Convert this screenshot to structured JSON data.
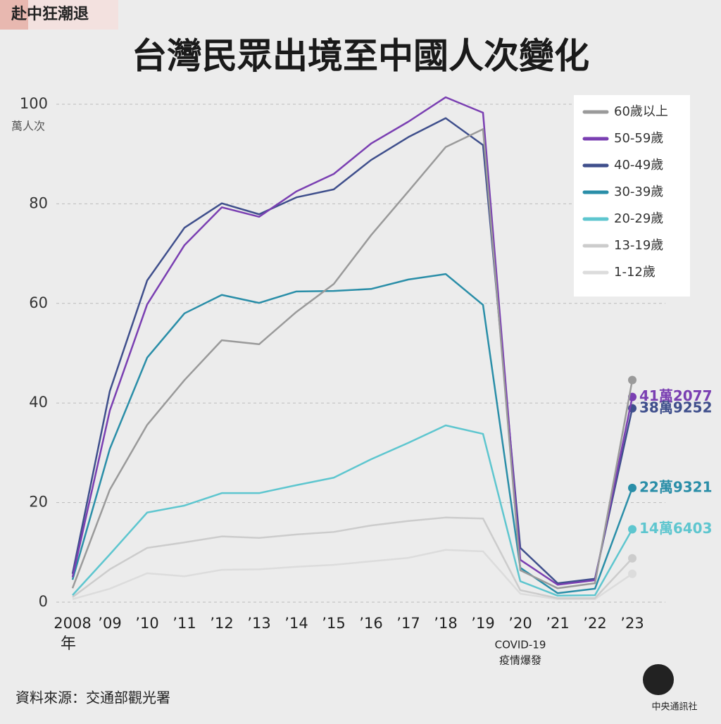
{
  "chart_data": {
    "type": "line",
    "tag": "赴中狂潮退",
    "title": "台灣民眾出境至中國人次變化",
    "ylabel": "萬人次",
    "xlabel": "年",
    "source": "資料來源：交通部觀光署",
    "logo": "中央通訊社",
    "annotation": {
      "x": "’20",
      "text": [
        "COVID-19",
        "疫情爆發"
      ]
    },
    "categories": [
      "2008",
      "’09",
      "’10",
      "’11",
      "’12",
      "’13",
      "’14",
      "’15",
      "’16",
      "’17",
      "’18",
      "’19",
      "’20",
      "’21",
      "’22",
      "’23"
    ],
    "ylim": [
      0,
      100
    ],
    "yticks": [
      0,
      20,
      40,
      60,
      80,
      100
    ],
    "grid": true,
    "legend": "top-right",
    "series": [
      {
        "name": "60歲以上",
        "color": "#9a9a9a",
        "values": [
          2.8,
          22.6,
          35.6,
          44.6,
          52.6,
          51.8,
          58.3,
          63.9,
          73.7,
          82.5,
          91.4,
          95,
          6.4,
          2.8,
          3.8,
          44.6
        ]
      },
      {
        "name": "50-59歲",
        "color": "#7a3fb2",
        "values": [
          5,
          38.5,
          59.8,
          71.7,
          79.3,
          77.4,
          82.5,
          86,
          92.1,
          96.5,
          101.4,
          98.3,
          8.5,
          3.5,
          4.4,
          41.2077
        ],
        "value_labels": [
          null,
          null,
          null,
          null,
          null,
          null,
          null,
          null,
          null,
          null,
          null,
          null,
          null,
          null,
          null,
          "41萬2077"
        ]
      },
      {
        "name": "40-49歲",
        "color": "#3f4f8c",
        "values": [
          5.7,
          42.4,
          64.6,
          75.2,
          80.1,
          77.9,
          81.3,
          82.9,
          88.8,
          93.4,
          97.2,
          91.8,
          10.9,
          3.8,
          4.7,
          38.9252
        ],
        "value_labels": [
          null,
          null,
          null,
          null,
          null,
          null,
          null,
          null,
          null,
          null,
          null,
          null,
          null,
          null,
          null,
          "38萬9252"
        ]
      },
      {
        "name": "30-39歲",
        "color": "#2a8ea8",
        "values": [
          4.5,
          30.8,
          49.1,
          58,
          61.7,
          60.1,
          62.4,
          62.5,
          62.9,
          64.8,
          65.9,
          59.7,
          6.9,
          1.8,
          2.7,
          22.9321
        ],
        "value_labels": [
          null,
          null,
          null,
          null,
          null,
          null,
          null,
          null,
          null,
          null,
          null,
          null,
          null,
          null,
          null,
          "22萬9321"
        ]
      },
      {
        "name": "20-29歲",
        "color": "#5ec6cf",
        "values": [
          1.4,
          9.6,
          18,
          19.4,
          21.9,
          21.9,
          23.5,
          25,
          28.7,
          32,
          35.5,
          33.8,
          4.2,
          1.3,
          1.4,
          14.6403
        ],
        "value_labels": [
          null,
          null,
          null,
          null,
          null,
          null,
          null,
          null,
          null,
          null,
          null,
          null,
          null,
          null,
          null,
          "14萬6403"
        ]
      },
      {
        "name": "13-19歲",
        "color": "#cccccc",
        "values": [
          1,
          6.6,
          10.9,
          12,
          13.2,
          12.9,
          13.6,
          14.1,
          15.4,
          16.3,
          17,
          16.8,
          2.4,
          0.8,
          0.8,
          8.8
        ]
      },
      {
        "name": "1-12歲",
        "color": "#dcdcdc",
        "values": [
          0.6,
          2.7,
          5.8,
          5.2,
          6.5,
          6.6,
          7.1,
          7.5,
          8.2,
          8.9,
          10.5,
          10.2,
          1.7,
          0.6,
          0.6,
          5.7
        ]
      }
    ]
  }
}
